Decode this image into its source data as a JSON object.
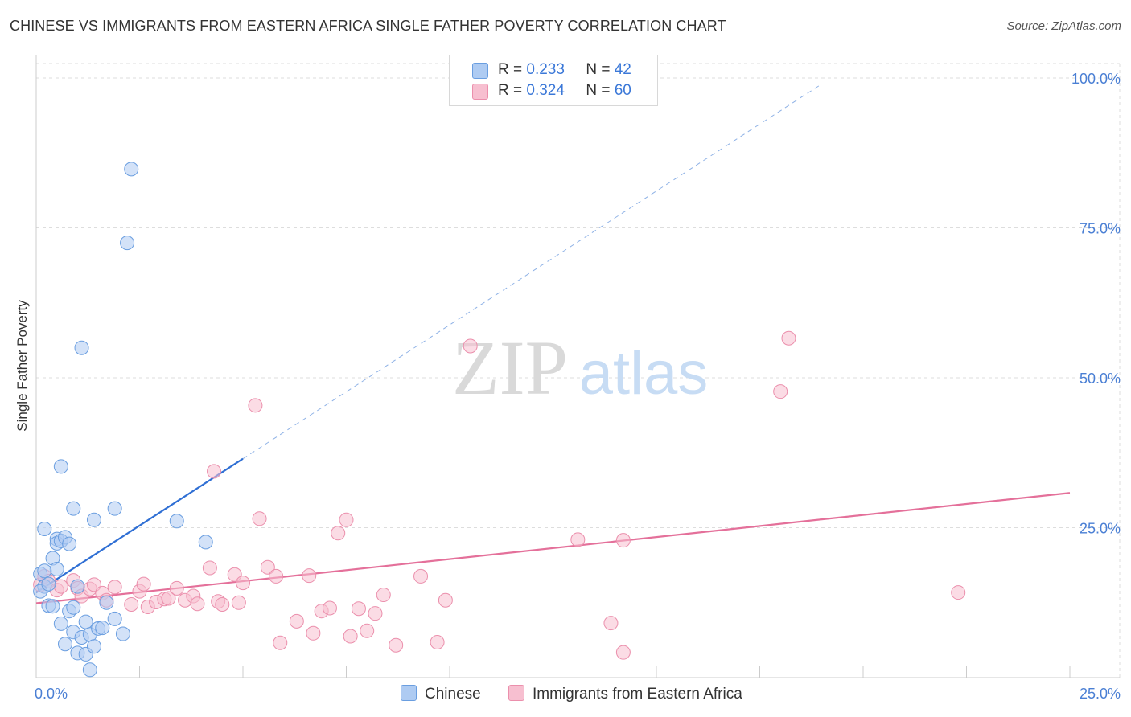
{
  "title": "CHINESE VS IMMIGRANTS FROM EASTERN AFRICA SINGLE FATHER POVERTY CORRELATION CHART",
  "source": "Source: ZipAtlas.com",
  "watermark": {
    "zip": "ZIP",
    "atlas": "atlas"
  },
  "legend": {
    "rows": [
      {
        "r_label": "R =",
        "r_value": "0.233",
        "n_label": "N =",
        "n_value": "42"
      },
      {
        "r_label": "R =",
        "r_value": "0.324",
        "n_label": "N =",
        "n_value": "60"
      }
    ]
  },
  "bottom_legend": {
    "series1": "Chinese",
    "series2": "Immigrants from Eastern Africa"
  },
  "colors": {
    "chinese_fill": "#aecbf2",
    "chinese_stroke": "#6a9ee0",
    "chinese_line": "#2f6fd4",
    "africa_fill": "#f7bfd0",
    "africa_stroke": "#eb8fac",
    "africa_line": "#e4709a",
    "grid": "#dddddd",
    "tick_text": "#4a7fd4"
  },
  "chart_data": {
    "type": "scatter",
    "title": "CHINESE VS IMMIGRANTS FROM EASTERN AFRICA SINGLE FATHER POVERTY CORRELATION CHART",
    "xlabel": "",
    "ylabel": "Single Father Poverty",
    "xlim": [
      0,
      25
    ],
    "ylim": [
      0,
      100
    ],
    "x_tick_labels": [
      "0.0%",
      "25.0%"
    ],
    "y_tick_labels": [
      "100.0%",
      "75.0%",
      "50.0%",
      "25.0%"
    ],
    "y_ticks": [
      100,
      75,
      50,
      25
    ],
    "series": [
      {
        "name": "Chinese",
        "R": 0.233,
        "N": 42,
        "points": [
          [
            0.1,
            17.3
          ],
          [
            0.2,
            15.2
          ],
          [
            0.1,
            14.4
          ],
          [
            0.2,
            24.8
          ],
          [
            0.3,
            12.0
          ],
          [
            0.4,
            19.9
          ],
          [
            0.4,
            11.9
          ],
          [
            0.5,
            23.1
          ],
          [
            0.5,
            18.1
          ],
          [
            0.5,
            22.4
          ],
          [
            0.6,
            22.8
          ],
          [
            0.6,
            35.2
          ],
          [
            0.6,
            9.0
          ],
          [
            0.7,
            5.6
          ],
          [
            0.7,
            23.4
          ],
          [
            0.8,
            11.1
          ],
          [
            0.8,
            22.3
          ],
          [
            0.9,
            11.7
          ],
          [
            0.9,
            28.2
          ],
          [
            0.9,
            7.6
          ],
          [
            1.0,
            4.1
          ],
          [
            1.0,
            15.2
          ],
          [
            1.1,
            6.7
          ],
          [
            1.2,
            9.3
          ],
          [
            1.2,
            3.9
          ],
          [
            1.3,
            1.3
          ],
          [
            1.3,
            7.2
          ],
          [
            1.4,
            26.3
          ],
          [
            1.4,
            5.2
          ],
          [
            1.5,
            8.2
          ],
          [
            1.6,
            8.3
          ],
          [
            1.7,
            12.5
          ],
          [
            1.9,
            9.8
          ],
          [
            1.9,
            28.2
          ],
          [
            2.1,
            7.3
          ],
          [
            1.1,
            55.0
          ],
          [
            2.2,
            72.5
          ],
          [
            2.3,
            84.8
          ],
          [
            3.4,
            26.1
          ],
          [
            4.1,
            22.6
          ],
          [
            0.3,
            15.6
          ],
          [
            0.2,
            17.8
          ]
        ],
        "trend_solid": {
          "x": [
            0.0,
            5.0
          ],
          "y": [
            14.2,
            36.5
          ]
        },
        "trend_dashed": {
          "x": [
            5.0,
            19.0
          ],
          "y": [
            36.5,
            99.0
          ]
        }
      },
      {
        "name": "Immigrants from Eastern Africa",
        "R": 0.324,
        "N": 60,
        "points": [
          [
            0.1,
            15.5
          ],
          [
            0.2,
            16.9
          ],
          [
            0.3,
            16.1
          ],
          [
            0.5,
            14.6
          ],
          [
            0.6,
            15.2
          ],
          [
            0.9,
            16.2
          ],
          [
            1.0,
            14.9
          ],
          [
            1.1,
            13.6
          ],
          [
            1.3,
            14.8
          ],
          [
            1.4,
            15.5
          ],
          [
            1.6,
            14.1
          ],
          [
            1.7,
            12.9
          ],
          [
            1.9,
            15.1
          ],
          [
            2.3,
            12.2
          ],
          [
            2.5,
            14.4
          ],
          [
            2.6,
            15.6
          ],
          [
            2.7,
            11.8
          ],
          [
            2.9,
            12.6
          ],
          [
            3.1,
            13.1
          ],
          [
            3.2,
            13.2
          ],
          [
            3.4,
            14.9
          ],
          [
            3.6,
            12.9
          ],
          [
            3.8,
            13.6
          ],
          [
            3.9,
            12.3
          ],
          [
            4.2,
            18.3
          ],
          [
            4.4,
            12.7
          ],
          [
            4.5,
            12.2
          ],
          [
            4.8,
            17.2
          ],
          [
            4.9,
            12.5
          ],
          [
            5.0,
            15.8
          ],
          [
            5.4,
            26.5
          ],
          [
            5.6,
            18.4
          ],
          [
            5.8,
            16.9
          ],
          [
            5.9,
            5.8
          ],
          [
            6.3,
            9.4
          ],
          [
            6.6,
            17.0
          ],
          [
            6.7,
            7.4
          ],
          [
            6.9,
            11.1
          ],
          [
            7.1,
            11.6
          ],
          [
            7.3,
            24.1
          ],
          [
            7.5,
            26.3
          ],
          [
            7.6,
            6.9
          ],
          [
            7.8,
            11.5
          ],
          [
            8.0,
            7.8
          ],
          [
            8.2,
            10.7
          ],
          [
            8.4,
            13.8
          ],
          [
            8.7,
            5.4
          ],
          [
            9.3,
            16.9
          ],
          [
            9.7,
            5.9
          ],
          [
            9.9,
            12.9
          ],
          [
            10.5,
            55.3
          ],
          [
            13.1,
            23.0
          ],
          [
            13.9,
            9.1
          ],
          [
            14.2,
            22.9
          ],
          [
            14.2,
            4.2
          ],
          [
            18.0,
            47.7
          ],
          [
            18.2,
            56.6
          ],
          [
            22.3,
            14.2
          ],
          [
            4.3,
            34.4
          ],
          [
            5.3,
            45.4
          ]
        ],
        "trend_solid": {
          "x": [
            0.0,
            25.0
          ],
          "y": [
            12.4,
            30.8
          ]
        }
      }
    ]
  }
}
